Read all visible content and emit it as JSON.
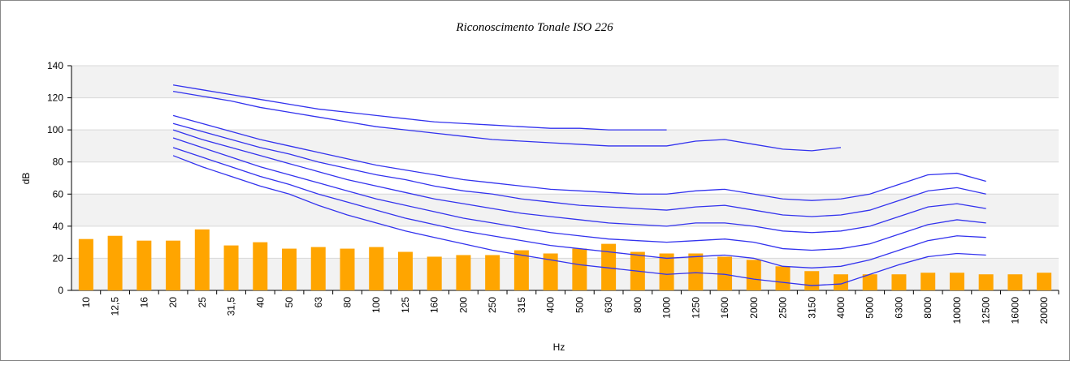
{
  "chart_data": {
    "type": "bar-line",
    "title": "Riconoscimento Tonale ISO 226",
    "x_label": "Hz",
    "y_label": "dB",
    "categories": [
      "10",
      "12,5",
      "16",
      "20",
      "25",
      "31,5",
      "40",
      "50",
      "63",
      "80",
      "100",
      "125",
      "160",
      "200",
      "250",
      "315",
      "400",
      "500",
      "630",
      "800",
      "1000",
      "1250",
      "1600",
      "2000",
      "2500",
      "3150",
      "4000",
      "5000",
      "6300",
      "8000",
      "10000",
      "12500",
      "16000",
      "20000"
    ],
    "values": [
      32,
      34,
      31,
      31,
      38,
      28,
      30,
      26,
      27,
      26,
      27,
      24,
      21,
      22,
      22,
      25,
      23,
      26,
      29,
      24,
      23,
      23,
      21,
      19,
      15,
      12,
      10,
      10,
      10,
      11,
      11,
      10,
      10,
      11
    ],
    "color": "#ffa500",
    "series": [
      {
        "color": "#3333ee",
        "values": [
          null,
          null,
          null,
          128,
          125,
          122,
          119,
          116,
          113,
          111,
          109,
          107,
          105,
          104,
          103,
          102,
          101,
          101,
          100,
          100,
          100,
          null,
          null,
          null,
          null,
          null,
          null,
          null,
          null,
          null,
          null,
          null,
          null,
          null
        ]
      },
      {
        "color": "#3333ee",
        "values": [
          null,
          null,
          null,
          124,
          121,
          118,
          114,
          111,
          108,
          105,
          102,
          100,
          98,
          96,
          94,
          93,
          92,
          91,
          90,
          90,
          90,
          93,
          94,
          91,
          88,
          87,
          89,
          null,
          null,
          null,
          null,
          null,
          null,
          null
        ]
      },
      {
        "color": "#3333ee",
        "values": [
          null,
          null,
          null,
          109,
          104,
          99,
          94,
          90,
          86,
          82,
          78,
          75,
          72,
          69,
          67,
          65,
          63,
          62,
          61,
          60,
          60,
          62,
          63,
          60,
          57,
          56,
          57,
          60,
          66,
          72,
          73,
          68,
          null,
          null
        ]
      },
      {
        "color": "#3333ee",
        "values": [
          null,
          null,
          null,
          104,
          99,
          94,
          89,
          85,
          80,
          76,
          72,
          69,
          65,
          62,
          60,
          57,
          55,
          53,
          52,
          51,
          50,
          52,
          53,
          50,
          47,
          46,
          47,
          50,
          56,
          62,
          64,
          60,
          null,
          null
        ]
      },
      {
        "color": "#3333ee",
        "values": [
          null,
          null,
          null,
          100,
          94,
          89,
          84,
          79,
          74,
          69,
          65,
          61,
          57,
          54,
          51,
          48,
          46,
          44,
          42,
          41,
          40,
          42,
          42,
          40,
          37,
          36,
          37,
          40,
          46,
          52,
          54,
          51,
          null,
          null
        ]
      },
      {
        "color": "#3333ee",
        "values": [
          null,
          null,
          null,
          95,
          89,
          83,
          77,
          72,
          67,
          62,
          57,
          53,
          49,
          45,
          42,
          39,
          36,
          34,
          32,
          31,
          30,
          31,
          32,
          30,
          26,
          25,
          26,
          29,
          35,
          41,
          44,
          42,
          null,
          null
        ]
      },
      {
        "color": "#3333ee",
        "values": [
          null,
          null,
          null,
          89,
          83,
          77,
          71,
          66,
          60,
          55,
          50,
          45,
          41,
          37,
          34,
          31,
          28,
          26,
          24,
          22,
          20,
          21,
          22,
          20,
          15,
          14,
          15,
          19,
          25,
          31,
          34,
          33,
          null,
          null
        ]
      },
      {
        "color": "#3333ee",
        "values": [
          null,
          null,
          null,
          84,
          77,
          71,
          65,
          60,
          53,
          47,
          42,
          37,
          33,
          29,
          25,
          22,
          19,
          16,
          14,
          12,
          10,
          11,
          10,
          7,
          5,
          3,
          4,
          10,
          16,
          21,
          23,
          22,
          null,
          null
        ]
      }
    ],
    "ylim": [
      0,
      140
    ],
    "yticks": [
      0,
      20,
      40,
      60,
      80,
      100,
      120,
      140
    ],
    "grid": true
  }
}
